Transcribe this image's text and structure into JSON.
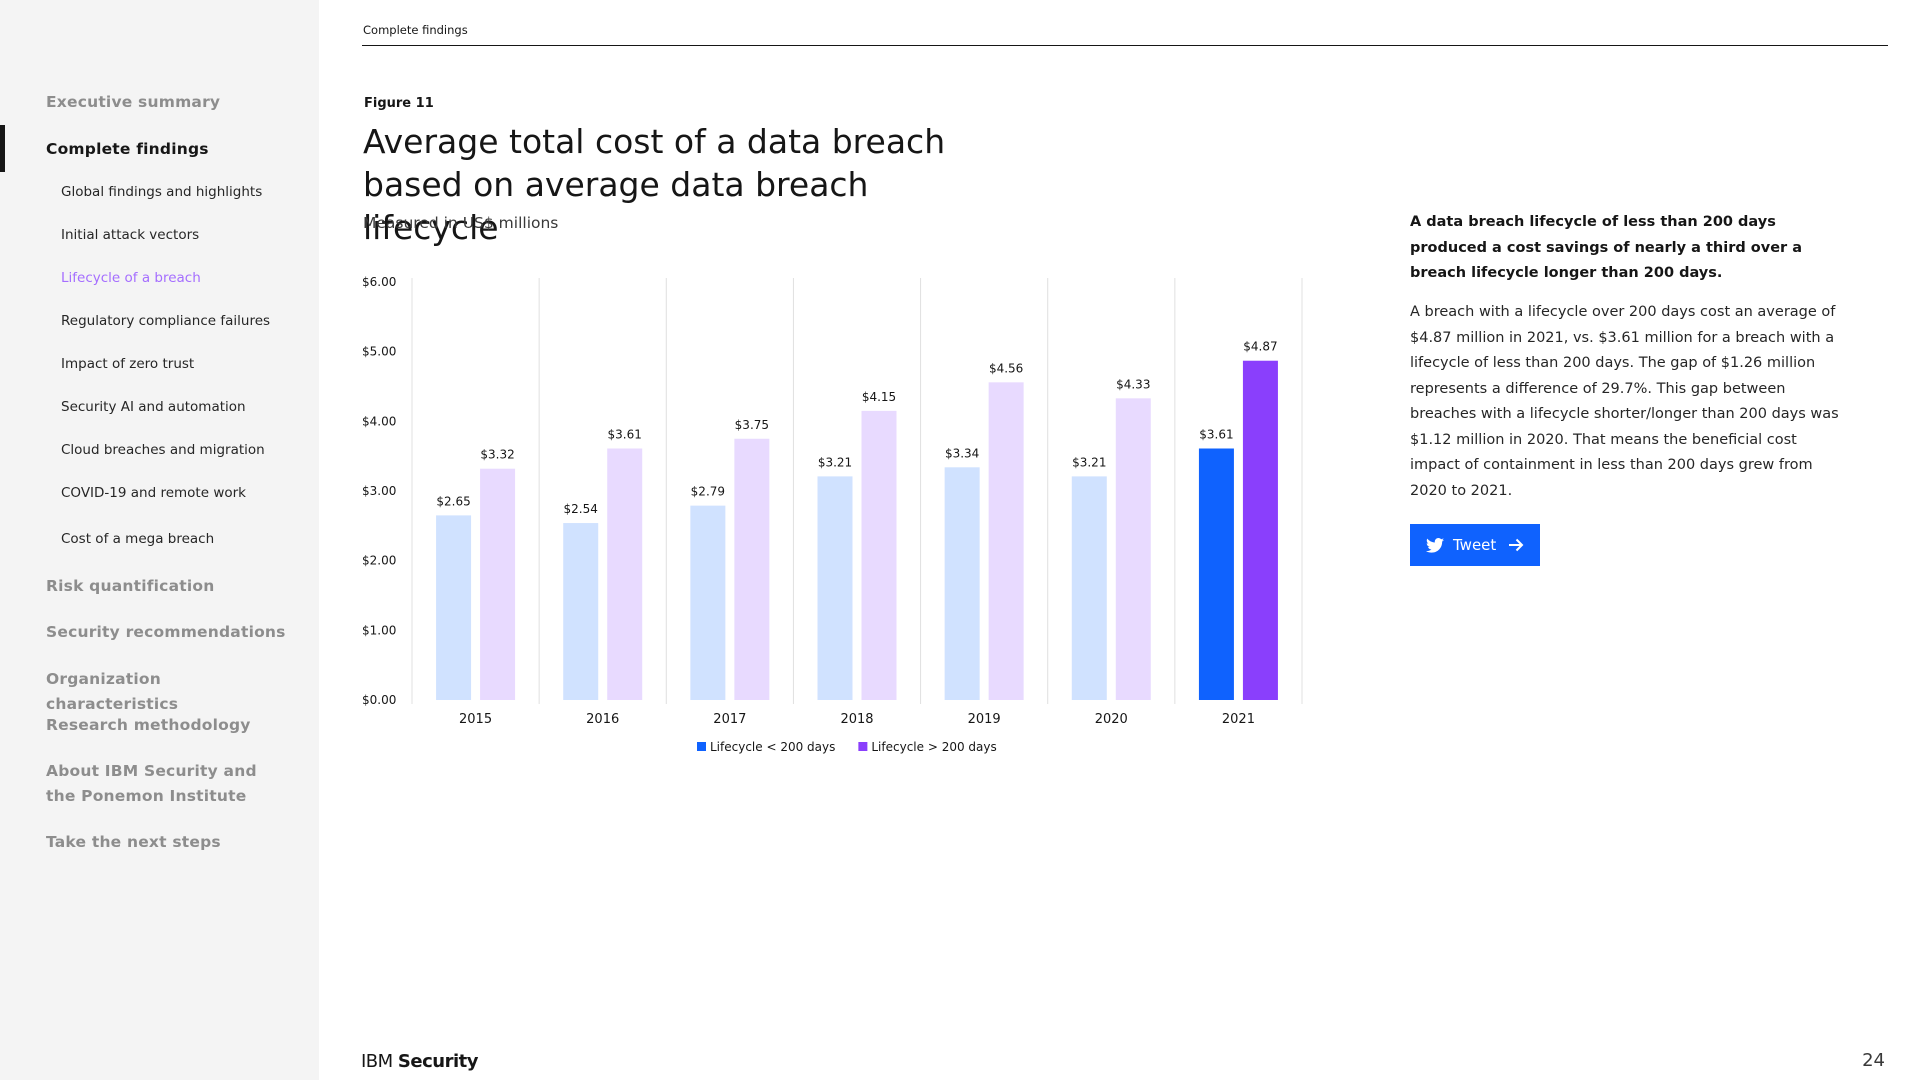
{
  "sidebar": {
    "items": [
      {
        "label": "Executive summary",
        "level": "top",
        "active": false
      },
      {
        "label": "Complete findings",
        "level": "top",
        "active": true
      },
      {
        "label": "Global findings and highlights",
        "level": "sub",
        "active": false
      },
      {
        "label": "Initial attack vectors",
        "level": "sub",
        "active": false
      },
      {
        "label": "Lifecycle of a breach",
        "level": "sub",
        "active": true
      },
      {
        "label": "Regulatory compliance failures",
        "level": "sub",
        "active": false
      },
      {
        "label": "Impact of zero trust",
        "level": "sub",
        "active": false
      },
      {
        "label": "Security AI and automation",
        "level": "sub",
        "active": false
      },
      {
        "label": "Cloud breaches and migration",
        "level": "sub",
        "active": false
      },
      {
        "label": "COVID-19 and remote work",
        "level": "sub",
        "active": false
      },
      {
        "label": "Cost of a mega breach",
        "level": "sub",
        "active": false
      },
      {
        "label": "Risk quantification",
        "level": "top",
        "active": false
      },
      {
        "label": "Security recommendations",
        "level": "top",
        "active": false
      },
      {
        "label": "Organization characteristics",
        "level": "top",
        "active": false
      },
      {
        "label": "Research methodology",
        "level": "top",
        "active": false
      },
      {
        "label": "About IBM Security and the Ponemon Institute",
        "level": "top",
        "active": false
      },
      {
        "label": "Take the next steps",
        "level": "top",
        "active": false
      }
    ]
  },
  "header": {
    "section_label": "Complete findings"
  },
  "figure": {
    "label": "Figure 11",
    "title": "Average total cost of a data breach based on average data breach lifecycle",
    "subtitle": "Measured in US$ millions"
  },
  "chart_data": {
    "type": "bar",
    "categories": [
      "2015",
      "2016",
      "2017",
      "2018",
      "2019",
      "2020",
      "2021"
    ],
    "series": [
      {
        "name": "Lifecycle < 200 days",
        "values": [
          2.65,
          2.54,
          2.79,
          3.21,
          3.34,
          3.21,
          3.61
        ],
        "labels": [
          "$2.65",
          "$2.54",
          "$2.79",
          "$3.21",
          "$3.34",
          "$3.21",
          "$3.61"
        ],
        "color": "#d0e2ff",
        "highlight_color": "#0f62fe"
      },
      {
        "name": "Lifecycle > 200 days",
        "values": [
          3.32,
          3.61,
          3.75,
          4.15,
          4.56,
          4.33,
          4.87
        ],
        "labels": [
          "$3.32",
          "$3.61",
          "$3.75",
          "$4.15",
          "$4.56",
          "$4.33",
          "$4.87"
        ],
        "color": "#e8daff",
        "highlight_color": "#8a3ffc"
      }
    ],
    "highlight_category": "2021",
    "ylim": [
      0,
      6
    ],
    "yticks": [
      "$0.00",
      "$1.00",
      "$2.00",
      "$3.00",
      "$4.00",
      "$5.00",
      "$6.00"
    ],
    "xlabel": "",
    "ylabel": "",
    "grid": "vertical category separators",
    "legend": "bottom-center"
  },
  "callout": {
    "headline": "A data breach lifecycle of less than 200 days produced a cost savings of nearly a third over a breach lifecycle longer than 200 days.",
    "body": "A breach with a lifecycle over 200 days cost an average of $4.87 million in 2021, vs. $3.61 million for a breach with a lifecycle of less than 200 days. The gap of $1.26 million represents a difference of 29.7%. This gap between breaches with a lifecycle shorter/longer than 200 days was $1.12 million in 2020. That means the beneficial cost impact of containment in less than 200 days grew from 2020 to 2021.",
    "tweet_label": "Tweet",
    "tweet_icon": "twitter-bird-icon"
  },
  "footer": {
    "logo_prefix": "IBM",
    "logo_brand": "Security",
    "page_number": "24"
  },
  "colors": {
    "accent": "#0f62fe",
    "accent_purple": "#8a3ffc",
    "active_sub": "#a56eff"
  }
}
